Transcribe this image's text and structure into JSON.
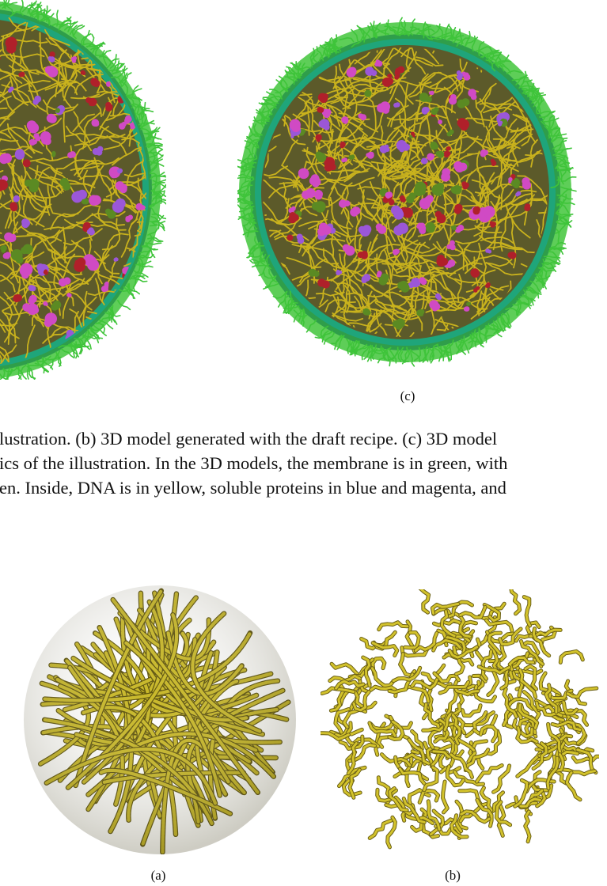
{
  "top_figure": {
    "subfigure_label_c": "(c)"
  },
  "caption": {
    "lines": [
      "lustration. (b) 3D model generated with the draft recipe. (c) 3D model",
      "ics of the illustration. In the 3D models, the membrane is in green, with",
      "en. Inside, DNA is in yellow, soluble proteins in blue and magenta, and"
    ]
  },
  "bottom_figure": {
    "subfigure_label_a": "(a)",
    "subfigure_label_b": "(b)"
  },
  "colors": {
    "membrane_outer": "#3fc43a",
    "membrane_band": "#1fa57a",
    "interior_bg": "#6b6b2c",
    "dna_yellow": "#c9b21d",
    "protein_magenta": "#d04ac4",
    "protein_blue": "#9b57d8",
    "protein_red": "#b0202a",
    "protein_green": "#5b8a23"
  }
}
